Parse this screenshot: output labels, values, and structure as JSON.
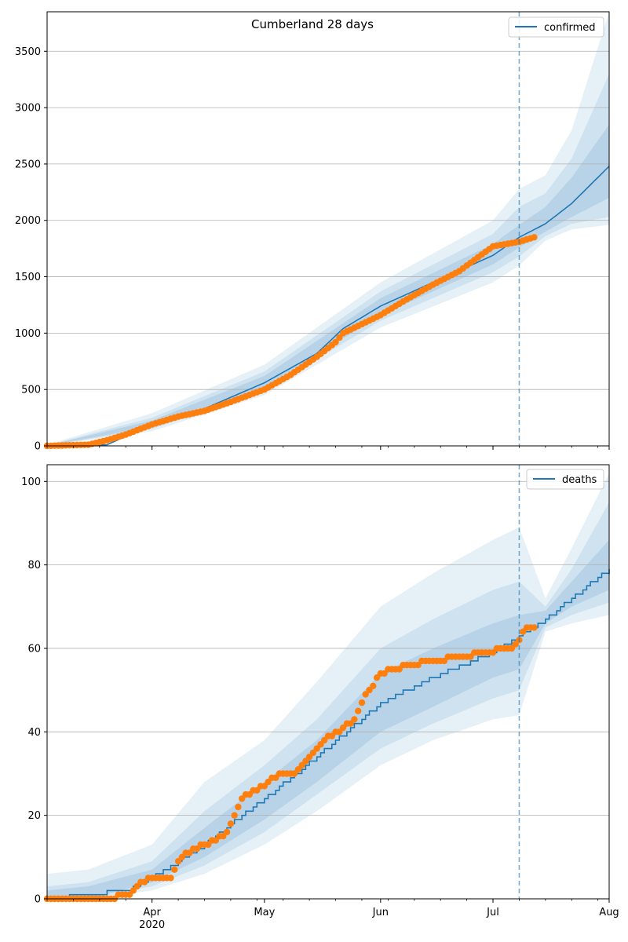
{
  "chart_data": [
    {
      "type": "line",
      "title": "Cumberland 28 days",
      "legend": {
        "entries": [
          "confirmed"
        ],
        "placement": "top-right"
      },
      "grid": "y",
      "x_range": [
        "2020-03-04",
        "2020-08-01"
      ],
      "ylim": [
        0,
        3850
      ],
      "y_ticks": [
        0,
        500,
        1000,
        1500,
        2000,
        2500,
        3000,
        3500
      ],
      "forecast_start": "2020-07-08",
      "colors": {
        "model": "#1f77b4",
        "observed": "#ff7f0e"
      },
      "series": [
        {
          "name": "confirmed",
          "kind": "model-line",
          "x": [
            "2020-03-04",
            "2020-03-20",
            "2020-04-01",
            "2020-04-15",
            "2020-05-01",
            "2020-05-15",
            "2020-05-22",
            "2020-06-01",
            "2020-06-15",
            "2020-07-01",
            "2020-07-08",
            "2020-07-15",
            "2020-07-22",
            "2020-08-01"
          ],
          "y": [
            0,
            10,
            190,
            330,
            560,
            820,
            1040,
            1240,
            1450,
            1690,
            1850,
            1970,
            2150,
            2480
          ]
        },
        {
          "kind": "band",
          "x": [
            "2020-03-04",
            "2020-04-01",
            "2020-05-01",
            "2020-06-01",
            "2020-07-01",
            "2020-07-08",
            "2020-07-15",
            "2020-07-22",
            "2020-08-01"
          ],
          "low": [
            0,
            130,
            450,
            1050,
            1450,
            1600,
            1820,
            1920,
            1960
          ],
          "high": [
            10,
            290,
            720,
            1450,
            2000,
            2280,
            2400,
            2800,
            3850
          ]
        },
        {
          "kind": "band",
          "x": [
            "2020-03-04",
            "2020-04-01",
            "2020-05-01",
            "2020-06-01",
            "2020-07-01",
            "2020-07-08",
            "2020-07-15",
            "2020-07-22",
            "2020-08-01"
          ],
          "low": [
            0,
            150,
            490,
            1110,
            1540,
            1680,
            1860,
            1970,
            2030
          ],
          "high": [
            5,
            250,
            660,
            1370,
            1880,
            2120,
            2240,
            2550,
            3300
          ]
        },
        {
          "kind": "band",
          "x": [
            "2020-03-04",
            "2020-04-01",
            "2020-05-01",
            "2020-06-01",
            "2020-07-01",
            "2020-07-08",
            "2020-07-15",
            "2020-07-22",
            "2020-08-01"
          ],
          "low": [
            0,
            170,
            520,
            1160,
            1610,
            1760,
            1900,
            2030,
            2200
          ],
          "high": [
            3,
            225,
            620,
            1310,
            1790,
            1960,
            2120,
            2380,
            2850
          ]
        },
        {
          "kind": "observed",
          "x": [
            "2020-03-04",
            "2020-03-15",
            "2020-03-20",
            "2020-03-25",
            "2020-04-01",
            "2020-04-08",
            "2020-04-15",
            "2020-04-22",
            "2020-05-01",
            "2020-05-08",
            "2020-05-15",
            "2020-05-20",
            "2020-05-22",
            "2020-06-01",
            "2020-06-08",
            "2020-06-15",
            "2020-06-22",
            "2020-07-01",
            "2020-07-08",
            "2020-07-12"
          ],
          "y": [
            0,
            10,
            50,
            100,
            190,
            260,
            310,
            390,
            500,
            630,
            790,
            920,
            1000,
            1160,
            1300,
            1430,
            1550,
            1770,
            1810,
            1850
          ]
        }
      ]
    },
    {
      "type": "line",
      "legend": {
        "entries": [
          "deaths"
        ],
        "placement": "top-right"
      },
      "grid": "y",
      "x_range": [
        "2020-03-04",
        "2020-08-01"
      ],
      "ylim": [
        0,
        104
      ],
      "y_ticks": [
        0,
        20,
        40,
        60,
        80,
        100
      ],
      "x_ticks": [
        {
          "date": "2020-04-01",
          "label": "Apr",
          "sublabel": "2020"
        },
        {
          "date": "2020-05-01",
          "label": "May"
        },
        {
          "date": "2020-06-01",
          "label": "Jun"
        },
        {
          "date": "2020-07-01",
          "label": "Jul"
        },
        {
          "date": "2020-08-01",
          "label": "Aug"
        }
      ],
      "forecast_start": "2020-07-08",
      "colors": {
        "model": "#1f77b4",
        "observed": "#ff7f0e"
      },
      "series": [
        {
          "name": "deaths",
          "kind": "model-line",
          "x": [
            "2020-03-04",
            "2020-03-15",
            "2020-03-25",
            "2020-04-01",
            "2020-04-15",
            "2020-05-01",
            "2020-05-15",
            "2020-06-01",
            "2020-06-15",
            "2020-07-01",
            "2020-07-08",
            "2020-07-15",
            "2020-07-22",
            "2020-08-01"
          ],
          "y": [
            0,
            1,
            2,
            5,
            13,
            24,
            34,
            47,
            53,
            59,
            63,
            67,
            72,
            79
          ]
        },
        {
          "kind": "band",
          "x": [
            "2020-03-04",
            "2020-03-15",
            "2020-04-01",
            "2020-04-15",
            "2020-05-01",
            "2020-05-15",
            "2020-06-01",
            "2020-06-15",
            "2020-07-01",
            "2020-07-08",
            "2020-07-15",
            "2020-07-22",
            "2020-08-01"
          ],
          "low": [
            0,
            0,
            2,
            6,
            13,
            21,
            32,
            38,
            43,
            44,
            64,
            66,
            68
          ],
          "high": [
            6,
            7,
            13,
            28,
            38,
            52,
            70,
            78,
            86,
            89,
            72,
            84,
            102
          ]
        },
        {
          "kind": "band",
          "x": [
            "2020-03-04",
            "2020-03-15",
            "2020-04-01",
            "2020-04-15",
            "2020-05-01",
            "2020-05-15",
            "2020-06-01",
            "2020-06-15",
            "2020-07-01",
            "2020-07-08",
            "2020-07-15",
            "2020-07-22",
            "2020-08-01"
          ],
          "low": [
            0,
            0,
            3,
            8,
            16,
            25,
            36,
            42,
            48,
            50,
            65,
            68,
            71
          ],
          "high": [
            3,
            4,
            9,
            21,
            32,
            43,
            60,
            67,
            74,
            76,
            70,
            79,
            95
          ]
        },
        {
          "kind": "band",
          "x": [
            "2020-03-04",
            "2020-03-15",
            "2020-04-01",
            "2020-04-15",
            "2020-05-01",
            "2020-05-15",
            "2020-06-01",
            "2020-06-15",
            "2020-07-01",
            "2020-07-08",
            "2020-07-15",
            "2020-07-22",
            "2020-08-01"
          ],
          "low": [
            0,
            0,
            4,
            10,
            19,
            28,
            40,
            46,
            53,
            55,
            66,
            70,
            74
          ],
          "high": [
            2,
            3,
            7,
            17,
            28,
            38,
            54,
            60,
            66,
            68,
            69,
            76,
            86
          ]
        },
        {
          "kind": "observed",
          "x": [
            "2020-03-04",
            "2020-03-20",
            "2020-03-26",
            "2020-03-28",
            "2020-04-01",
            "2020-04-06",
            "2020-04-08",
            "2020-04-12",
            "2020-04-18",
            "2020-04-21",
            "2020-04-25",
            "2020-05-01",
            "2020-05-05",
            "2020-05-09",
            "2020-05-13",
            "2020-05-17",
            "2020-05-21",
            "2020-05-25",
            "2020-05-27",
            "2020-05-29",
            "2020-06-01",
            "2020-06-08",
            "2020-06-15",
            "2020-06-22",
            "2020-06-29",
            "2020-07-05",
            "2020-07-06",
            "2020-07-08",
            "2020-07-10",
            "2020-07-12"
          ],
          "y": [
            0,
            0,
            1,
            3,
            5,
            5,
            9,
            12,
            14,
            16,
            24,
            27,
            30,
            30,
            34,
            38,
            40,
            43,
            47,
            50,
            54,
            56,
            57,
            58,
            59,
            60,
            60,
            62,
            65,
            65
          ]
        }
      ]
    }
  ]
}
